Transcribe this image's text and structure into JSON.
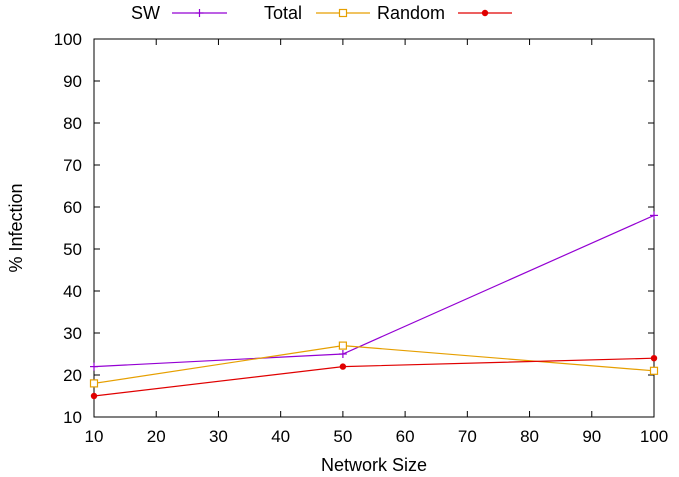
{
  "chart_data": {
    "type": "line",
    "xlabel": "Network Size",
    "ylabel": "% Infection",
    "xlim": [
      10,
      100
    ],
    "ylim": [
      10,
      100
    ],
    "xticks": [
      10,
      20,
      30,
      40,
      50,
      60,
      70,
      80,
      90,
      100
    ],
    "yticks": [
      10,
      20,
      30,
      40,
      50,
      60,
      70,
      80,
      90,
      100
    ],
    "grid": false,
    "legend_position": "top",
    "series": [
      {
        "name": "SW",
        "color": "#9400d3",
        "marker": "plus",
        "x": [
          10,
          50,
          100
        ],
        "y": [
          22,
          25,
          58
        ]
      },
      {
        "name": "Total",
        "color": "#e69f00",
        "marker": "open-square",
        "x": [
          10,
          50,
          100
        ],
        "y": [
          18,
          27,
          21
        ]
      },
      {
        "name": "Random",
        "color": "#e00000",
        "marker": "filled-circle",
        "x": [
          10,
          50,
          100
        ],
        "y": [
          15,
          22,
          24
        ]
      }
    ]
  }
}
